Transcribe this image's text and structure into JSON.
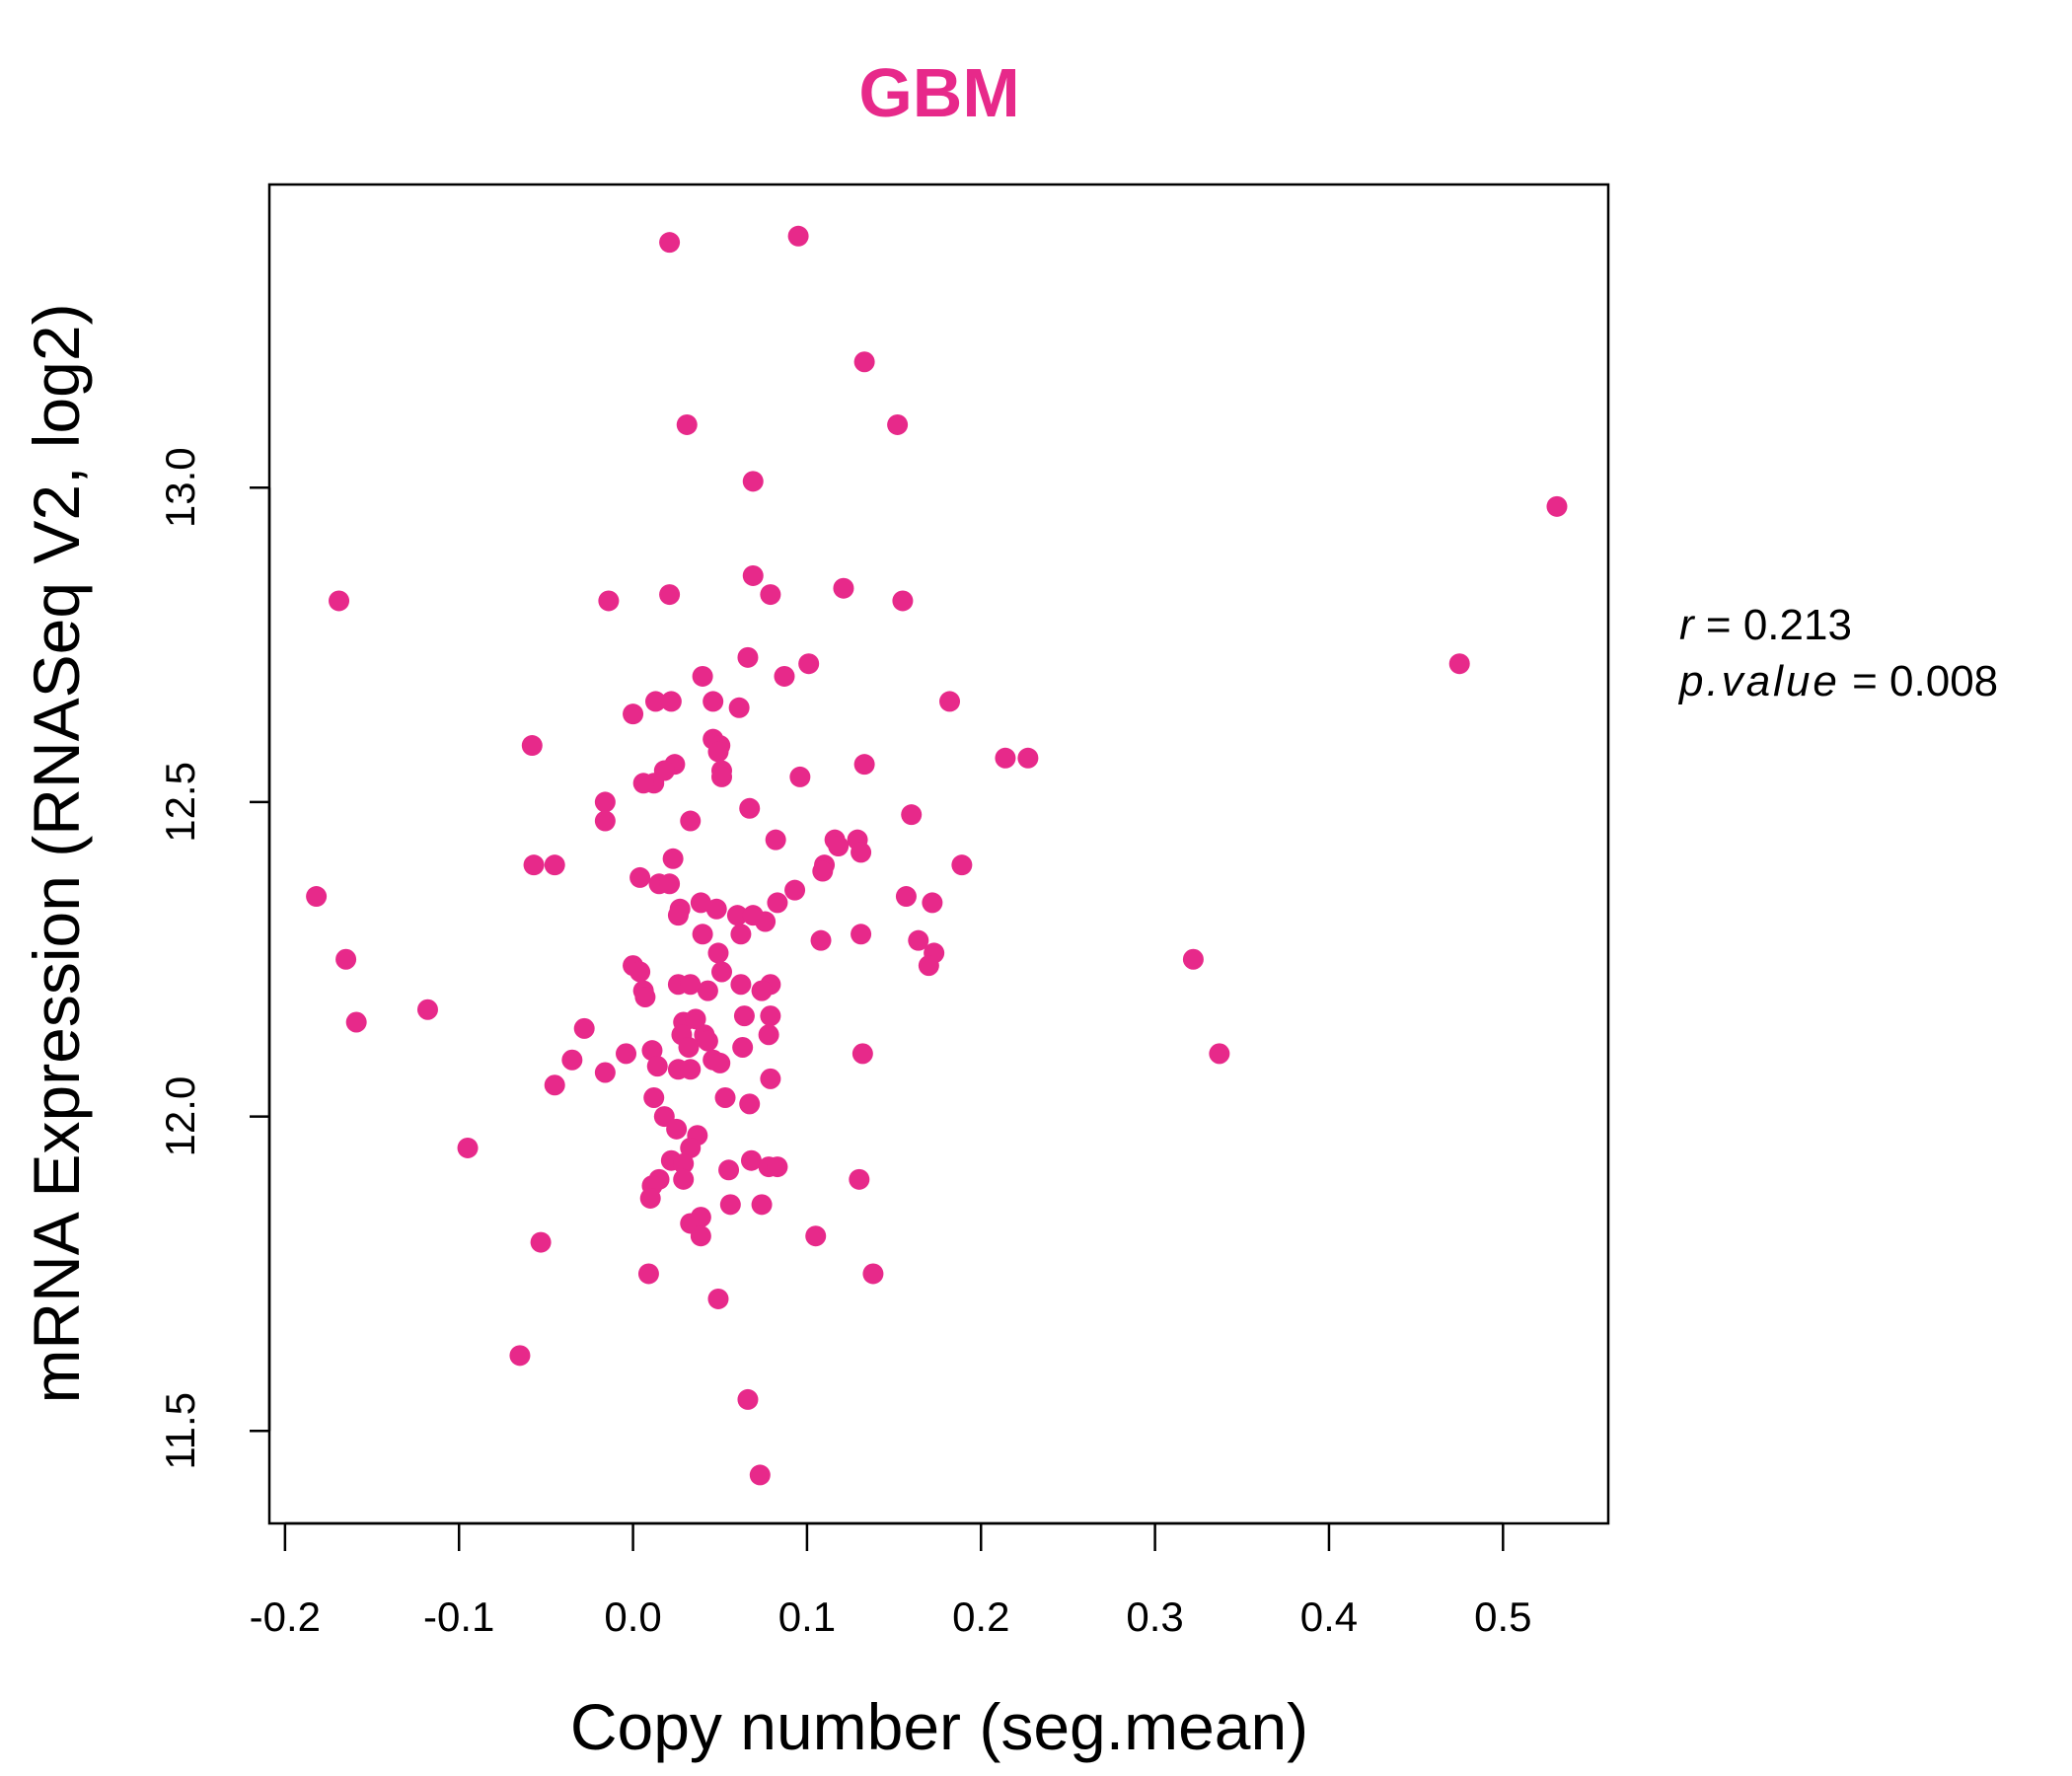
{
  "chart_data": {
    "type": "scatter",
    "title": "GBM",
    "xlabel": "Copy number (seg.mean)",
    "ylabel": "mRNA Expression (RNASeq V2, log2)",
    "xlim": [
      -0.209,
      0.5605
    ],
    "ylim": [
      11.353,
      13.482
    ],
    "xticks": [
      -0.2,
      -0.1,
      0.0,
      0.1,
      0.2,
      0.3,
      0.4,
      0.5
    ],
    "xtick_labels": [
      "-0.2",
      "-0.1",
      "0.0",
      "0.1",
      "0.2",
      "0.3",
      "0.4",
      "0.5"
    ],
    "yticks": [
      11.5,
      12.0,
      12.5,
      13.0
    ],
    "ytick_labels": [
      "11.5",
      "12.0",
      "12.5",
      "13.0"
    ],
    "grid": false,
    "point_color": "#E7298A",
    "title_color": "#E7298A",
    "annotations": {
      "r_label": "r",
      "r_value": "0.213",
      "p_label": "p.value",
      "p_value": "0.008"
    },
    "points": [
      [
        0.021,
        13.39
      ],
      [
        0.095,
        13.4
      ],
      [
        0.133,
        13.2
      ],
      [
        0.031,
        13.1
      ],
      [
        0.152,
        13.1
      ],
      [
        0.069,
        13.01
      ],
      [
        0.531,
        12.97
      ],
      [
        -0.169,
        12.82
      ],
      [
        -0.014,
        12.82
      ],
      [
        0.021,
        12.83
      ],
      [
        0.069,
        12.86
      ],
      [
        0.079,
        12.83
      ],
      [
        0.121,
        12.84
      ],
      [
        0.155,
        12.82
      ],
      [
        0.475,
        12.72
      ],
      [
        0.066,
        12.73
      ],
      [
        0.101,
        12.72
      ],
      [
        0.04,
        12.7
      ],
      [
        0.087,
        12.7
      ],
      [
        0.013,
        12.66
      ],
      [
        0.022,
        12.66
      ],
      [
        0.046,
        12.66
      ],
      [
        0.061,
        12.65
      ],
      [
        0.182,
        12.66
      ],
      [
        0.0,
        12.64
      ],
      [
        0.046,
        12.6
      ],
      [
        0.05,
        12.59
      ],
      [
        0.049,
        12.58
      ],
      [
        -0.058,
        12.59
      ],
      [
        0.024,
        12.56
      ],
      [
        0.018,
        12.55
      ],
      [
        0.012,
        12.53
      ],
      [
        0.006,
        12.53
      ],
      [
        0.051,
        12.55
      ],
      [
        0.051,
        12.54
      ],
      [
        0.133,
        12.56
      ],
      [
        0.214,
        12.57
      ],
      [
        0.227,
        12.57
      ],
      [
        0.096,
        12.54
      ],
      [
        -0.016,
        12.5
      ],
      [
        -0.016,
        12.47
      ],
      [
        0.033,
        12.47
      ],
      [
        0.067,
        12.49
      ],
      [
        0.16,
        12.48
      ],
      [
        0.082,
        12.44
      ],
      [
        0.116,
        12.44
      ],
      [
        0.118,
        12.43
      ],
      [
        0.129,
        12.44
      ],
      [
        0.131,
        12.42
      ],
      [
        0.023,
        12.41
      ],
      [
        -0.057,
        12.4
      ],
      [
        -0.045,
        12.4
      ],
      [
        0.11,
        12.4
      ],
      [
        0.109,
        12.39
      ],
      [
        0.189,
        12.4
      ],
      [
        -0.182,
        12.35
      ],
      [
        0.004,
        12.38
      ],
      [
        0.015,
        12.37
      ],
      [
        0.021,
        12.37
      ],
      [
        0.093,
        12.36
      ],
      [
        0.157,
        12.35
      ],
      [
        0.039,
        12.34
      ],
      [
        0.083,
        12.34
      ],
      [
        0.172,
        12.34
      ],
      [
        0.027,
        12.33
      ],
      [
        0.026,
        12.32
      ],
      [
        0.048,
        12.33
      ],
      [
        0.06,
        12.32
      ],
      [
        0.069,
        12.32
      ],
      [
        0.076,
        12.31
      ],
      [
        0.04,
        12.29
      ],
      [
        0.062,
        12.29
      ],
      [
        0.131,
        12.29
      ],
      [
        0.108,
        12.28
      ],
      [
        0.164,
        12.28
      ],
      [
        -0.165,
        12.25
      ],
      [
        0.049,
        12.26
      ],
      [
        0.173,
        12.26
      ],
      [
        0.322,
        12.25
      ],
      [
        0.17,
        12.24
      ],
      [
        0.0,
        12.24
      ],
      [
        0.004,
        12.23
      ],
      [
        0.051,
        12.23
      ],
      [
        0.026,
        12.21
      ],
      [
        0.033,
        12.21
      ],
      [
        0.062,
        12.21
      ],
      [
        0.079,
        12.21
      ],
      [
        0.006,
        12.2
      ],
      [
        0.043,
        12.2
      ],
      [
        0.074,
        12.2
      ],
      [
        0.007,
        12.19
      ],
      [
        -0.159,
        12.15
      ],
      [
        -0.118,
        12.17
      ],
      [
        0.064,
        12.16
      ],
      [
        0.079,
        12.16
      ],
      [
        0.029,
        12.15
      ],
      [
        0.036,
        12.155
      ],
      [
        -0.028,
        12.14
      ],
      [
        0.028,
        12.13
      ],
      [
        0.041,
        12.13
      ],
      [
        0.078,
        12.13
      ],
      [
        0.043,
        12.12
      ],
      [
        0.032,
        12.11
      ],
      [
        0.011,
        12.105
      ],
      [
        0.063,
        12.11
      ],
      [
        0.132,
        12.1
      ],
      [
        0.337,
        12.1
      ],
      [
        -0.004,
        12.1
      ],
      [
        0.046,
        12.09
      ],
      [
        -0.035,
        12.09
      ],
      [
        0.014,
        12.08
      ],
      [
        0.05,
        12.085
      ],
      [
        0.026,
        12.075
      ],
      [
        0.033,
        12.075
      ],
      [
        -0.016,
        12.07
      ],
      [
        0.079,
        12.06
      ],
      [
        -0.045,
        12.05
      ],
      [
        0.053,
        12.03
      ],
      [
        0.012,
        12.03
      ],
      [
        0.067,
        12.02
      ],
      [
        0.018,
        12.0
      ],
      [
        0.025,
        11.98
      ],
      [
        0.037,
        11.97
      ],
      [
        -0.095,
        11.95
      ],
      [
        0.033,
        11.95
      ],
      [
        0.022,
        11.93
      ],
      [
        0.029,
        11.925
      ],
      [
        0.068,
        11.93
      ],
      [
        0.078,
        11.92
      ],
      [
        0.083,
        11.92
      ],
      [
        0.055,
        11.915
      ],
      [
        0.015,
        11.9
      ],
      [
        0.011,
        11.89
      ],
      [
        0.029,
        11.9
      ],
      [
        0.13,
        11.9
      ],
      [
        0.01,
        11.87
      ],
      [
        0.074,
        11.86
      ],
      [
        0.056,
        11.86
      ],
      [
        0.033,
        11.83
      ],
      [
        0.039,
        11.84
      ],
      [
        0.039,
        11.81
      ],
      [
        0.105,
        11.81
      ],
      [
        -0.053,
        11.8
      ],
      [
        0.009,
        11.75
      ],
      [
        0.138,
        11.75
      ],
      [
        0.049,
        11.71
      ],
      [
        -0.065,
        11.62
      ],
      [
        0.066,
        11.55
      ],
      [
        0.073,
        11.43
      ]
    ]
  }
}
